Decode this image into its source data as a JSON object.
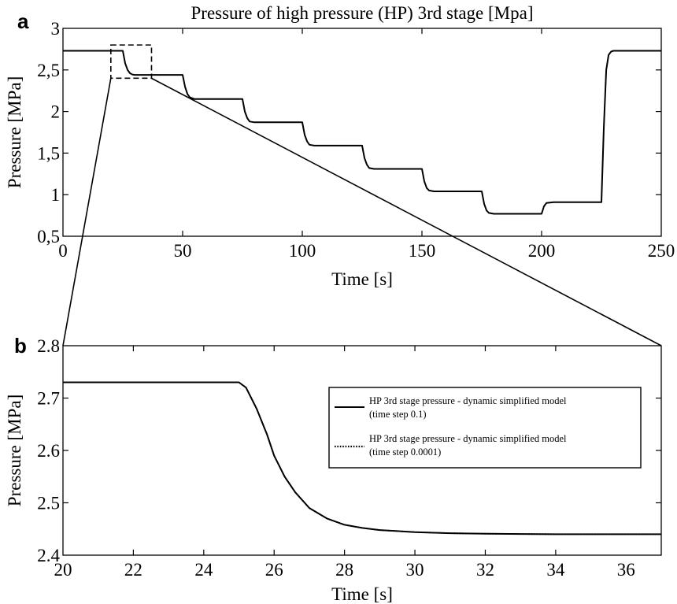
{
  "chart_data": [
    {
      "panel": "a",
      "type": "line",
      "title": "Pressure of high pressure (HP) 3rd stage [Mpa]",
      "xlabel": "Time [s]",
      "ylabel": "Pressure [MPa]",
      "xlim": [
        0,
        250
      ],
      "ylim": [
        0.5,
        3
      ],
      "xticks": [
        "0",
        "50",
        "100",
        "150",
        "200",
        "250"
      ],
      "yticks": [
        "0,5",
        "1",
        "1,5",
        "2",
        "2,5",
        "3"
      ],
      "grid": false,
      "zoom_region": {
        "x": [
          20,
          37
        ],
        "y": [
          2.4,
          2.8
        ]
      },
      "series": [
        {
          "x": [
            0,
            25,
            26,
            27,
            28,
            29,
            30,
            50,
            51,
            52,
            53,
            55,
            75,
            76,
            77,
            78,
            80,
            100,
            101,
            102,
            103,
            105,
            125,
            126,
            127,
            128,
            130,
            150,
            151,
            152,
            153,
            155,
            175,
            176,
            177,
            178,
            180,
            200,
            201,
            202,
            205,
            225,
            226,
            227,
            228,
            229,
            230,
            232,
            250
          ],
          "y": [
            2.73,
            2.73,
            2.58,
            2.5,
            2.46,
            2.445,
            2.44,
            2.44,
            2.3,
            2.21,
            2.17,
            2.15,
            2.15,
            2.0,
            1.92,
            1.88,
            1.87,
            1.87,
            1.72,
            1.64,
            1.6,
            1.59,
            1.59,
            1.44,
            1.36,
            1.32,
            1.31,
            1.31,
            1.16,
            1.08,
            1.05,
            1.04,
            1.04,
            0.89,
            0.81,
            0.78,
            0.77,
            0.77,
            0.86,
            0.9,
            0.91,
            0.91,
            1.8,
            2.5,
            2.68,
            2.72,
            2.73,
            2.73,
            2.73
          ]
        }
      ]
    },
    {
      "panel": "b",
      "type": "line",
      "xlabel": "Time [s]",
      "ylabel": "Pressure [MPa]",
      "xlim": [
        20,
        37
      ],
      "ylim": [
        2.4,
        2.8
      ],
      "xticks": [
        "20",
        "22",
        "24",
        "26",
        "28",
        "30",
        "32",
        "34",
        "36"
      ],
      "yticks": [
        "2.4",
        "2.5",
        "2.6",
        "2.7",
        "2.8"
      ],
      "grid": false,
      "legend_position": "upper-right",
      "series": [
        {
          "name": "HP 3rd stage pressure - dynamic simplified model (time step 0.1)",
          "style": "solid",
          "x": [
            20,
            25,
            25.2,
            25.5,
            25.8,
            26,
            26.3,
            26.6,
            27,
            27.5,
            28,
            28.5,
            29,
            30,
            31,
            32,
            33,
            34,
            35,
            36,
            37
          ],
          "y": [
            2.73,
            2.73,
            2.72,
            2.68,
            2.63,
            2.59,
            2.55,
            2.52,
            2.49,
            2.47,
            2.458,
            2.452,
            2.448,
            2.444,
            2.442,
            2.441,
            2.4405,
            2.44,
            2.44,
            2.44,
            2.44
          ]
        },
        {
          "name": "HP 3rd stage pressure - dynamic simplified model (time step 0.0001)",
          "style": "dotted",
          "x": [
            20,
            25,
            25.2,
            25.5,
            25.8,
            26,
            26.3,
            26.6,
            27,
            27.5,
            28,
            28.5,
            29,
            30,
            31,
            32,
            33,
            34,
            35,
            36,
            37
          ],
          "y": [
            2.73,
            2.73,
            2.72,
            2.68,
            2.63,
            2.59,
            2.55,
            2.52,
            2.49,
            2.47,
            2.458,
            2.452,
            2.448,
            2.444,
            2.442,
            2.441,
            2.4405,
            2.44,
            2.44,
            2.44,
            2.44
          ]
        }
      ],
      "legend": [
        {
          "line1": "HP 3rd stage pressure - dynamic simplified model",
          "line2": "(time step 0.1)"
        },
        {
          "line1": "HP 3rd stage pressure - dynamic simplified model",
          "line2": "(time step 0.0001)"
        }
      ]
    }
  ]
}
